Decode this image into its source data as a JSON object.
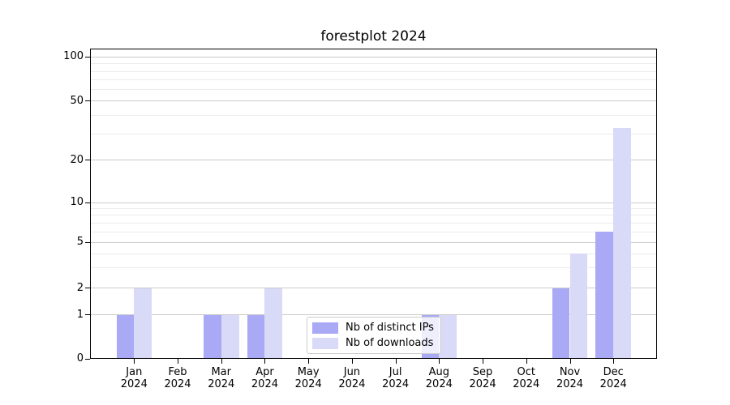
{
  "chart_data": {
    "type": "bar",
    "title": "forestplot 2024",
    "categories": [
      "Jan",
      "Feb",
      "Mar",
      "Apr",
      "May",
      "Jun",
      "Jul",
      "Aug",
      "Sep",
      "Oct",
      "Nov",
      "Dec"
    ],
    "x_year": "2024",
    "series": [
      {
        "name": "Nb of distinct IPs",
        "color": "#a9a9f6",
        "values": [
          1,
          0,
          1,
          1,
          0,
          0,
          0,
          1,
          0,
          0,
          2,
          6
        ]
      },
      {
        "name": "Nb of downloads",
        "color": "#d9d9f8",
        "values": [
          2,
          0,
          1,
          2,
          0,
          0,
          0,
          1,
          0,
          0,
          4,
          33
        ]
      }
    ],
    "yscale": "asinh-log",
    "yticks": [
      0,
      1,
      2,
      5,
      10,
      20,
      50,
      100
    ],
    "ytick_labels": [
      "0",
      "1",
      "2",
      "5",
      "10",
      "20",
      "50",
      "100"
    ],
    "minor_yticks": [
      3,
      4,
      6,
      7,
      8,
      9,
      30,
      40,
      60,
      70,
      80,
      90
    ],
    "ylim": [
      0,
      110
    ],
    "grid": "horizontal-major-and-minor",
    "legend_position": "lower center"
  },
  "colors": {
    "major_grid": "#cbcbcb",
    "minor_grid": "#ececec",
    "axis": "#000000",
    "background": "#ffffff",
    "text": "#000000"
  }
}
